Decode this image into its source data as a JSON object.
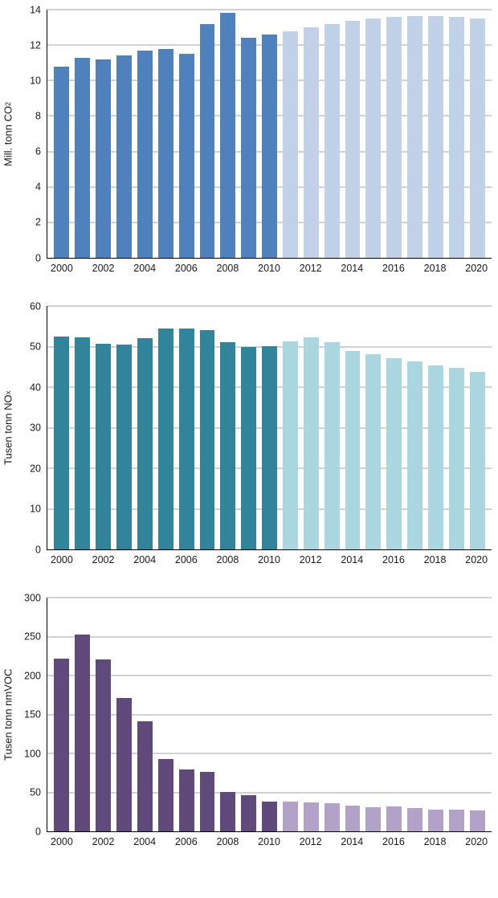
{
  "chart_data": [
    {
      "type": "bar",
      "title": "",
      "xlabel": "",
      "ylabel": "Mill. tonn CO",
      "ylabel_sub": "2",
      "ylim": [
        0,
        14
      ],
      "yticks": [
        0,
        2,
        4,
        6,
        8,
        10,
        12,
        14
      ],
      "grid": true,
      "legend": "none",
      "x": [
        2000,
        2001,
        2002,
        2003,
        2004,
        2005,
        2006,
        2007,
        2008,
        2009,
        2010,
        2011,
        2012,
        2013,
        2014,
        2015,
        2016,
        2017,
        2018,
        2019,
        2020
      ],
      "values": [
        10.8,
        11.3,
        11.2,
        11.4,
        11.7,
        11.8,
        11.5,
        13.2,
        13.8,
        12.4,
        12.6,
        12.8,
        13.0,
        13.2,
        13.35,
        13.5,
        13.6,
        13.65,
        13.65,
        13.6,
        13.5
      ],
      "projection_start_index": 11,
      "historical_color": "#4f81bd",
      "projection_color": "#c1d2e8"
    },
    {
      "type": "bar",
      "title": "",
      "xlabel": "",
      "ylabel": "Tusen tonn NO",
      "ylabel_sub": "x",
      "ylim": [
        0,
        60
      ],
      "yticks": [
        0,
        10,
        20,
        30,
        40,
        50,
        60
      ],
      "grid": true,
      "legend": "none",
      "x": [
        2000,
        2001,
        2002,
        2003,
        2004,
        2005,
        2006,
        2007,
        2008,
        2009,
        2010,
        2011,
        2012,
        2013,
        2014,
        2015,
        2016,
        2017,
        2018,
        2019,
        2020
      ],
      "values": [
        52.4,
        52.2,
        50.6,
        50.4,
        52.0,
        54.4,
        54.4,
        54.1,
        51.0,
        49.9,
        50.1,
        51.2,
        52.3,
        51.0,
        48.9,
        48.1,
        47.1,
        46.4,
        45.4,
        44.8,
        43.7
      ],
      "projection_start_index": 11,
      "historical_color": "#31859b",
      "projection_color": "#aad6e0"
    },
    {
      "type": "bar",
      "title": "",
      "xlabel": "",
      "ylabel": "Tusen tonn nmVOC",
      "ylabel_sub": "",
      "ylim": [
        0,
        300
      ],
      "yticks": [
        0,
        50,
        100,
        150,
        200,
        250,
        300
      ],
      "grid": true,
      "legend": "none",
      "x": [
        2000,
        2001,
        2002,
        2003,
        2004,
        2005,
        2006,
        2007,
        2008,
        2009,
        2010,
        2011,
        2012,
        2013,
        2014,
        2015,
        2016,
        2017,
        2018,
        2019,
        2020
      ],
      "values": [
        222,
        253,
        221,
        171,
        141,
        93,
        79,
        76,
        51,
        46,
        38,
        38,
        37,
        36,
        33,
        31,
        32,
        30,
        28,
        28,
        27
      ],
      "projection_start_index": 11,
      "historical_color": "#604a7b",
      "projection_color": "#b3a2c7"
    }
  ]
}
